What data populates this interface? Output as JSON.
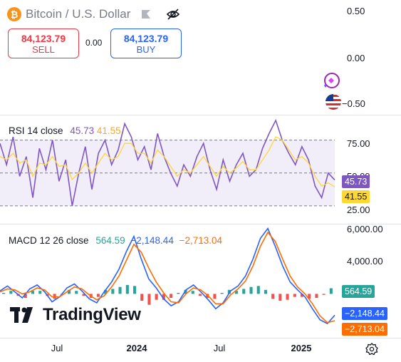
{
  "header": {
    "symbol_icon": "bitcoin-icon",
    "symbol_icon_glyph": "₿",
    "title": "Bitcoin / U.S. Dollar"
  },
  "trade": {
    "sell_price": "84,123.79",
    "sell_label": "SELL",
    "spread": "0.00",
    "buy_price": "84,123.79",
    "buy_label": "BUY"
  },
  "price_axis": [
    "0.50",
    "0.00",
    "−0.50"
  ],
  "rsi": {
    "label": "RSI 14 close",
    "value": "45.73",
    "ma_value": "41.55",
    "axis_labels": [
      "75.00",
      "50.00",
      "25.00"
    ]
  },
  "macd": {
    "label": "MACD 12 26 close",
    "hist_value": "564.59",
    "macd_value": "−2,148.44",
    "signal_value": "−2,713.04",
    "axis_labels": [
      "6,000.00",
      "4,000.00"
    ]
  },
  "time_axis": [
    "Jul",
    "2024",
    "Jul",
    "2025"
  ],
  "brand": "TradingView",
  "colors": {
    "sell": "#f23645",
    "buy": "#2962ff",
    "rsi_line": "#7e57c2",
    "rsi_ma": "#fdd835",
    "macd_line": "#2962ff",
    "signal_line": "#ff6d00",
    "hist_pos": "#26a69a",
    "hist_neg": "#ef5350"
  },
  "chart_data": [
    {
      "type": "line",
      "title": "RSI 14 close",
      "series": [
        {
          "name": "RSI",
          "values": [
            68,
            55,
            72,
            48,
            60,
            35,
            65,
            52,
            70,
            45,
            58,
            30,
            50,
            66,
            40,
            62,
            70,
            55,
            64,
            80,
            72,
            58,
            66,
            52,
            74,
            60,
            50,
            42,
            55,
            48,
            60,
            68,
            52,
            40,
            58,
            45,
            55,
            62,
            48,
            52,
            65,
            74,
            82,
            70,
            62,
            55,
            66,
            58,
            42,
            35,
            50,
            45.73
          ]
        },
        {
          "name": "RSI-based MA",
          "values": [
            60,
            58,
            62,
            56,
            58,
            48,
            56,
            55,
            60,
            54,
            55,
            46,
            50,
            56,
            50,
            56,
            62,
            58,
            60,
            68,
            68,
            62,
            62,
            56,
            64,
            60,
            54,
            48,
            52,
            50,
            55,
            60,
            54,
            48,
            54,
            50,
            53,
            57,
            52,
            52,
            58,
            64,
            72,
            70,
            64,
            58,
            60,
            56,
            48,
            42,
            44,
            41.55
          ]
        }
      ],
      "ylim": [
        20,
        85
      ],
      "bands": [
        30,
        50,
        70
      ]
    },
    {
      "type": "line",
      "title": "MACD 12 26 close",
      "series": [
        {
          "name": "MACD",
          "values": [
            300,
            800,
            200,
            -400,
            500,
            900,
            200,
            -800,
            -300,
            600,
            1000,
            300,
            -500,
            -900,
            200,
            1200,
            2500,
            4300,
            5800,
            3500,
            1500,
            600,
            -500,
            -1200,
            -800,
            400,
            900,
            200,
            -600,
            -1500,
            -900,
            300,
            800,
            1800,
            3500,
            5600,
            6600,
            4800,
            2800,
            1200,
            400,
            -300,
            -1500,
            -2600,
            -3000,
            -2148.44
          ]
        },
        {
          "name": "Signal",
          "values": [
            200,
            500,
            400,
            0,
            200,
            600,
            400,
            -300,
            -300,
            200,
            700,
            500,
            -100,
            -600,
            -200,
            700,
            1800,
            3400,
            5000,
            4200,
            2600,
            1200,
            100,
            -800,
            -900,
            0,
            600,
            400,
            -200,
            -1000,
            -1000,
            -100,
            500,
            1300,
            2800,
            4800,
            6200,
            5300,
            3500,
            1800,
            700,
            0,
            -1000,
            -2200,
            -2900,
            -2713.04
          ]
        }
      ],
      "histogram": [
        100,
        300,
        -200,
        -400,
        300,
        300,
        -200,
        -500,
        0,
        400,
        300,
        -200,
        -400,
        -300,
        400,
        500,
        700,
        900,
        800,
        -700,
        -1100,
        -600,
        -600,
        -400,
        100,
        400,
        300,
        -200,
        -400,
        -500,
        100,
        400,
        300,
        500,
        700,
        800,
        400,
        -500,
        -700,
        -600,
        -300,
        -300,
        -500,
        -400,
        -100,
        564.59
      ],
      "ylim": [
        -4500,
        7000
      ]
    }
  ]
}
